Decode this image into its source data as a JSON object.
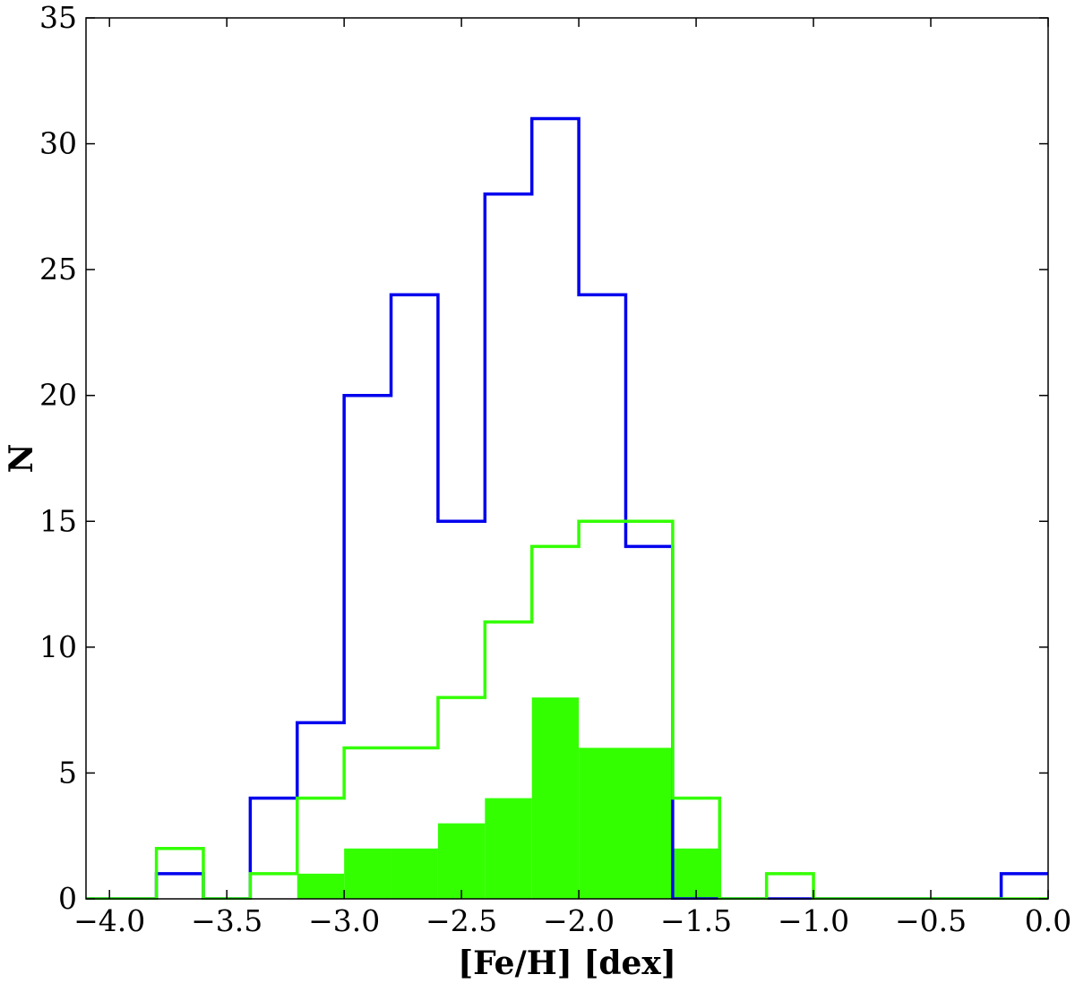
{
  "chart_data": {
    "type": "histogram",
    "xlabel": "[Fe/H] [dex]",
    "ylabel": "N",
    "xlim": [
      -4.1,
      0.0
    ],
    "ylim": [
      0,
      35
    ],
    "x_ticks": [
      -4.0,
      -3.5,
      -3.0,
      -2.5,
      -2.0,
      -1.5,
      -1.0,
      -0.5,
      0.0
    ],
    "x_tick_labels": [
      "−4.0",
      "−3.5",
      "−3.0",
      "−2.5",
      "−2.0",
      "−1.5",
      "−1.0",
      "−0.5",
      "0.0"
    ],
    "y_ticks": [
      0,
      5,
      10,
      15,
      20,
      25,
      30,
      35
    ],
    "y_tick_labels": [
      "0",
      "5",
      "10",
      "15",
      "20",
      "25",
      "30",
      "35"
    ],
    "grid": false,
    "bin_edges": [
      -4.2,
      -4.0,
      -3.8,
      -3.6,
      -3.4,
      -3.2,
      -3.0,
      -2.8,
      -2.6,
      -2.4,
      -2.2,
      -2.0,
      -1.8,
      -1.6,
      -1.4,
      -1.2,
      -1.0,
      -0.8,
      -0.6,
      -0.4,
      -0.2,
      0.0
    ],
    "series": [
      {
        "style": "step",
        "color": "#0000ee",
        "counts": [
          0,
          0,
          1,
          0,
          4,
          7,
          20,
          24,
          15,
          28,
          31,
          24,
          14,
          0,
          0,
          0,
          0,
          0,
          0,
          0,
          1
        ]
      },
      {
        "style": "step",
        "color": "#33ff00",
        "counts": [
          0,
          0,
          2,
          0,
          1,
          4,
          6,
          6,
          8,
          11,
          14,
          15,
          15,
          4,
          0,
          1,
          0,
          0,
          0,
          0,
          0
        ]
      },
      {
        "style": "filled",
        "color": "#33ff00",
        "counts": [
          0,
          0,
          0,
          0,
          0,
          1,
          2,
          2,
          3,
          4,
          8,
          6,
          6,
          2,
          0,
          0,
          0,
          0,
          0,
          0,
          0
        ]
      }
    ]
  }
}
